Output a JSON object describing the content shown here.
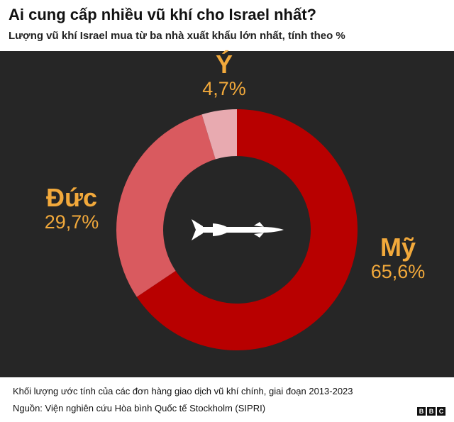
{
  "header": {
    "title": "Ai cung cấp nhiều vũ khí cho Israel nhất?",
    "subtitle": "Lượng vũ khí Israel mua từ ba nhà xuất khẩu lớn nhất, tính theo %"
  },
  "chart_data": {
    "type": "pie",
    "title": "Ai cung cấp nhiều vũ khí cho Israel nhất?",
    "subtitle": "Lượng vũ khí Israel mua từ ba nhà xuất khẩu lớn nhất, tính theo %",
    "slices": [
      {
        "label": "Mỹ",
        "value": 65.6,
        "value_label": "65,6%",
        "color": "#b80000"
      },
      {
        "label": "Đức",
        "value": 29.7,
        "value_label": "29,7%",
        "color": "#d95a5f"
      },
      {
        "label": "Ý",
        "value": 4.7,
        "value_label": "4,7%",
        "color": "#e8aab0"
      }
    ],
    "center_icon": "missile-icon"
  },
  "footer": {
    "note": "Khối lượng ước tính của các đơn hàng giao dịch vũ khí chính, giai đoạn 2013-2023",
    "source": "Nguồn: Viện nghiên cứu Hòa bình Quốc tế Stockholm (SIPRI)",
    "logo": [
      "B",
      "B",
      "C"
    ]
  },
  "colors": {
    "background_panel": "#262626",
    "label_color": "#f2a93b"
  }
}
